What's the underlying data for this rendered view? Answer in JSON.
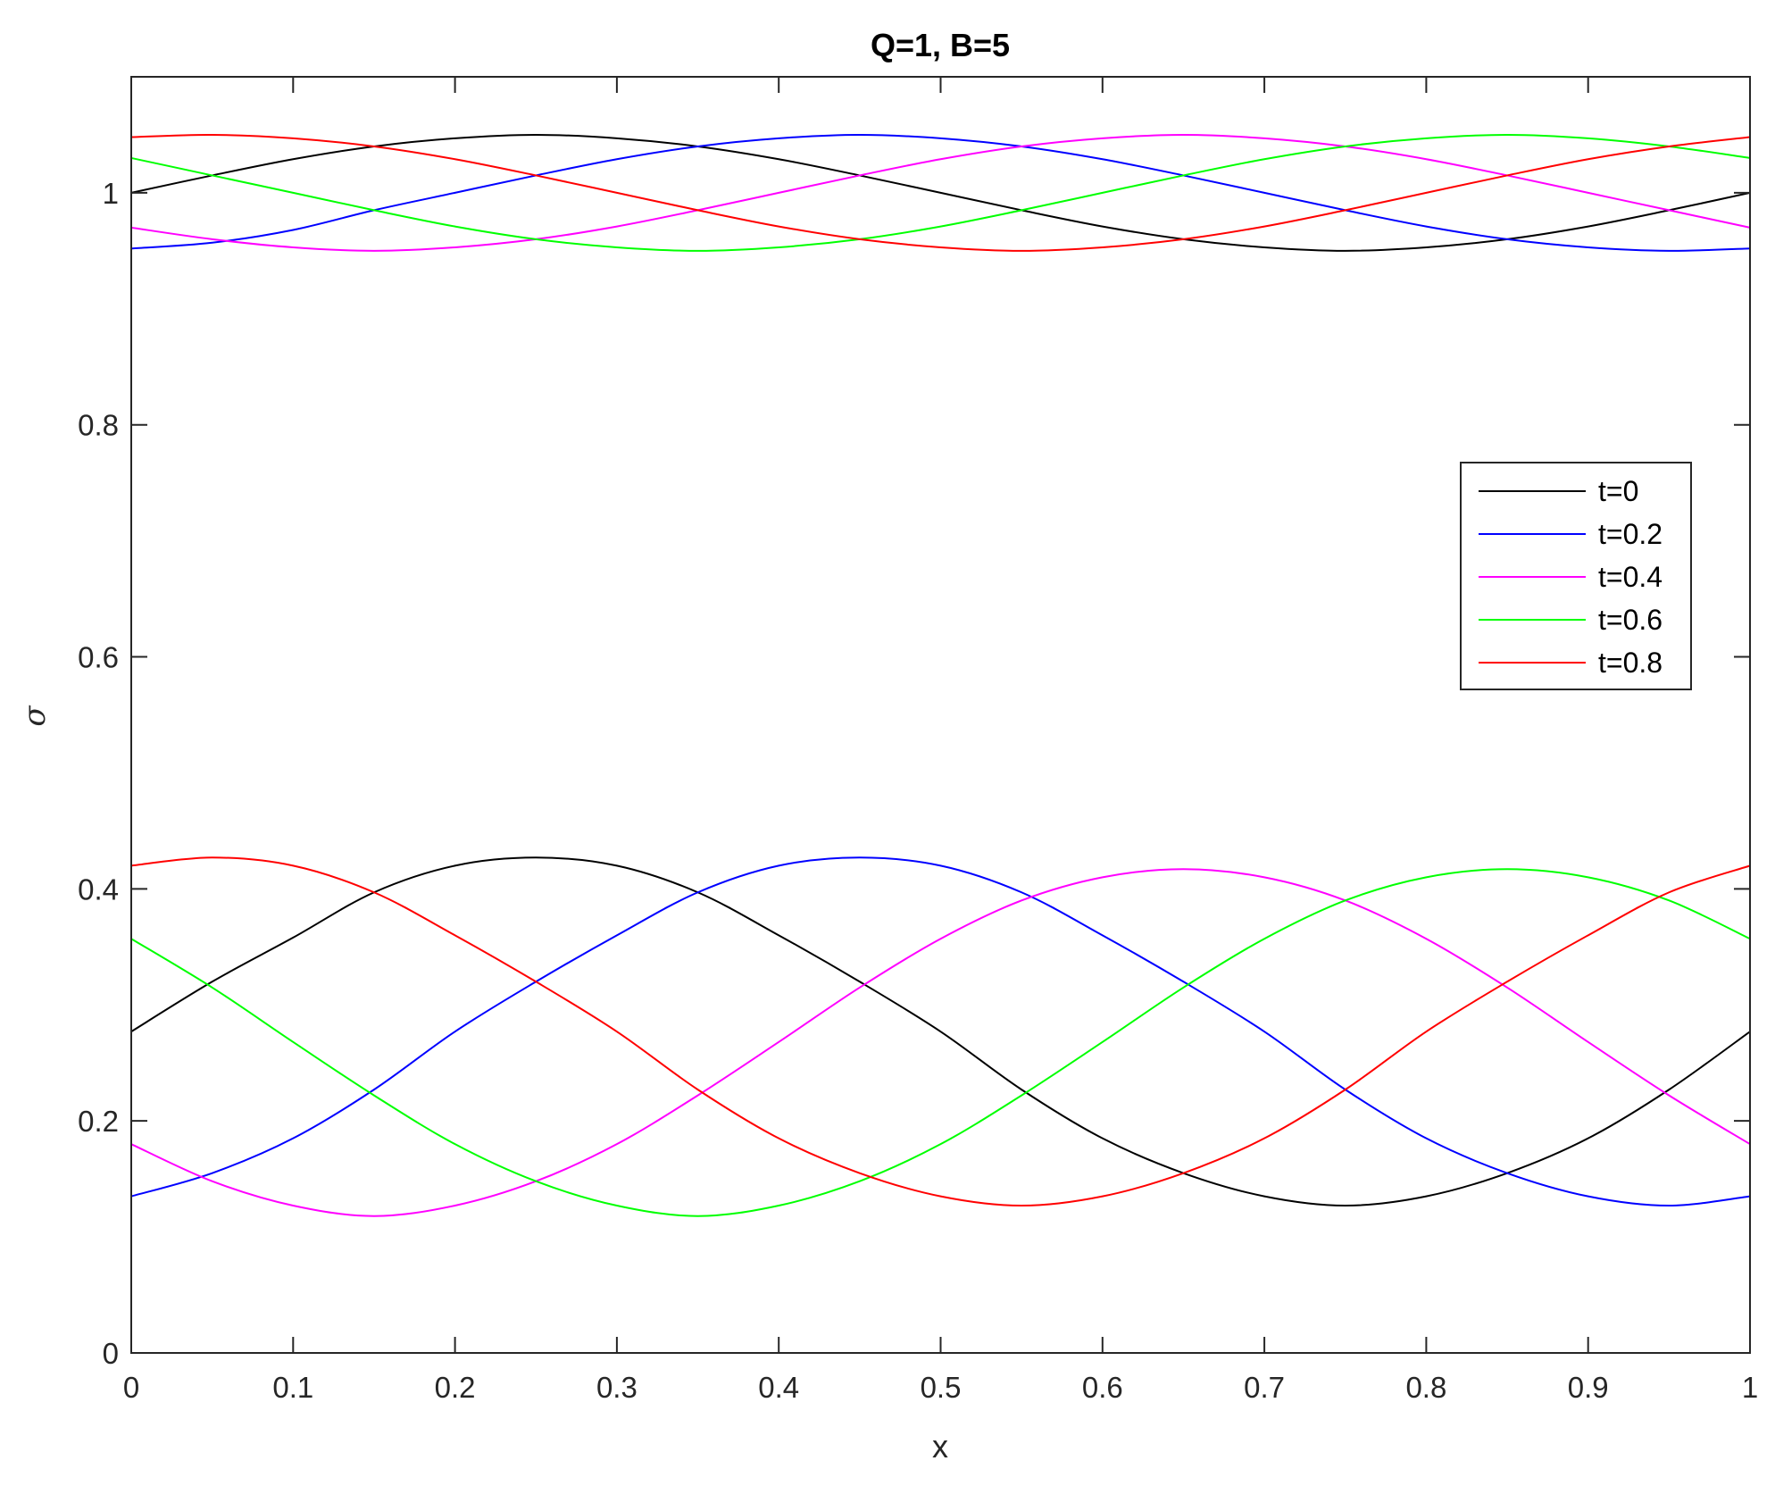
{
  "chart_data": {
    "type": "line",
    "title": "Q=1, B=5",
    "xlabel": "x",
    "ylabel": "σ",
    "xlim": [
      0,
      1
    ],
    "ylim": [
      0,
      1.1
    ],
    "xticks": [
      0,
      0.1,
      0.2,
      0.3,
      0.4,
      0.5,
      0.6,
      0.7,
      0.8,
      0.9,
      1
    ],
    "xtick_labels": [
      "0",
      "0.1",
      "0.2",
      "0.3",
      "0.4",
      "0.5",
      "0.6",
      "0.7",
      "0.8",
      "0.9",
      "1"
    ],
    "yticks": [
      0,
      0.2,
      0.4,
      0.6,
      0.8,
      1
    ],
    "ytick_labels": [
      "0",
      "0.2",
      "0.4",
      "0.6",
      "0.8",
      "1"
    ],
    "grid": false,
    "legend_position": "right",
    "series": [
      {
        "name": "t=0",
        "color": "#000000",
        "x": [
          0,
          0.05,
          0.1,
          0.15,
          0.2,
          0.25,
          0.3,
          0.35,
          0.4,
          0.45,
          0.5,
          0.55,
          0.6,
          0.65,
          0.7,
          0.75,
          0.8,
          0.85,
          0.9,
          0.95,
          1
        ],
        "upper": [
          1.0,
          1.015,
          1.029,
          1.04,
          1.047,
          1.05,
          1.047,
          1.04,
          1.029,
          1.015,
          1.0,
          0.985,
          0.971,
          0.96,
          0.953,
          0.95,
          0.953,
          0.96,
          0.971,
          0.985,
          1.0
        ],
        "lower": [
          0.277,
          0.32,
          0.358,
          0.397,
          0.42,
          0.427,
          0.42,
          0.397,
          0.36,
          0.32,
          0.277,
          0.227,
          0.185,
          0.155,
          0.135,
          0.127,
          0.135,
          0.155,
          0.185,
          0.227,
          0.277
        ]
      },
      {
        "name": "t=0.2",
        "color": "#0000ff",
        "x": [
          0,
          0.05,
          0.1,
          0.15,
          0.2,
          0.25,
          0.3,
          0.35,
          0.4,
          0.45,
          0.5,
          0.55,
          0.6,
          0.65,
          0.7,
          0.75,
          0.8,
          0.85,
          0.9,
          0.95,
          1
        ],
        "upper": [
          0.952,
          0.957,
          0.968,
          0.985,
          1.0,
          1.015,
          1.029,
          1.04,
          1.047,
          1.05,
          1.047,
          1.04,
          1.029,
          1.015,
          1.0,
          0.985,
          0.971,
          0.96,
          0.953,
          0.95,
          0.952
        ],
        "lower": [
          0.135,
          0.155,
          0.185,
          0.227,
          0.277,
          0.32,
          0.36,
          0.397,
          0.42,
          0.427,
          0.42,
          0.397,
          0.36,
          0.32,
          0.277,
          0.227,
          0.185,
          0.155,
          0.135,
          0.127,
          0.135
        ]
      },
      {
        "name": "t=0.4",
        "color": "#ff00ff",
        "x": [
          0,
          0.05,
          0.1,
          0.15,
          0.2,
          0.25,
          0.3,
          0.35,
          0.4,
          0.45,
          0.5,
          0.55,
          0.6,
          0.65,
          0.7,
          0.75,
          0.8,
          0.85,
          0.9,
          0.95,
          1
        ],
        "upper": [
          0.97,
          0.96,
          0.953,
          0.95,
          0.953,
          0.96,
          0.971,
          0.985,
          1.0,
          1.015,
          1.029,
          1.04,
          1.047,
          1.05,
          1.047,
          1.04,
          1.029,
          1.015,
          1.0,
          0.985,
          0.97
        ],
        "lower": [
          0.18,
          0.148,
          0.127,
          0.118,
          0.127,
          0.148,
          0.18,
          0.222,
          0.268,
          0.315,
          0.357,
          0.39,
          0.41,
          0.417,
          0.41,
          0.39,
          0.357,
          0.315,
          0.268,
          0.222,
          0.18
        ]
      },
      {
        "name": "t=0.6",
        "color": "#00ff00",
        "x": [
          0,
          0.05,
          0.1,
          0.15,
          0.2,
          0.25,
          0.3,
          0.35,
          0.4,
          0.45,
          0.5,
          0.55,
          0.6,
          0.65,
          0.7,
          0.75,
          0.8,
          0.85,
          0.9,
          0.95,
          1
        ],
        "upper": [
          1.03,
          1.015,
          1.0,
          0.985,
          0.971,
          0.96,
          0.953,
          0.95,
          0.953,
          0.96,
          0.971,
          0.985,
          1.0,
          1.015,
          1.029,
          1.04,
          1.047,
          1.05,
          1.047,
          1.04,
          1.03
        ],
        "lower": [
          0.357,
          0.315,
          0.268,
          0.222,
          0.18,
          0.148,
          0.127,
          0.118,
          0.127,
          0.148,
          0.18,
          0.222,
          0.268,
          0.315,
          0.357,
          0.39,
          0.41,
          0.417,
          0.41,
          0.39,
          0.357
        ]
      },
      {
        "name": "t=0.8",
        "color": "#ff0000",
        "x": [
          0,
          0.05,
          0.1,
          0.15,
          0.2,
          0.25,
          0.3,
          0.35,
          0.4,
          0.45,
          0.5,
          0.55,
          0.6,
          0.65,
          0.7,
          0.75,
          0.8,
          0.85,
          0.9,
          0.95,
          1
        ],
        "upper": [
          1.048,
          1.05,
          1.047,
          1.04,
          1.029,
          1.015,
          1.0,
          0.985,
          0.971,
          0.96,
          0.953,
          0.95,
          0.953,
          0.96,
          0.971,
          0.985,
          1.0,
          1.015,
          1.029,
          1.04,
          1.048
        ],
        "lower": [
          0.42,
          0.427,
          0.42,
          0.397,
          0.36,
          0.32,
          0.277,
          0.227,
          0.185,
          0.155,
          0.135,
          0.127,
          0.135,
          0.155,
          0.185,
          0.227,
          0.277,
          0.32,
          0.36,
          0.397,
          0.42
        ]
      }
    ]
  }
}
